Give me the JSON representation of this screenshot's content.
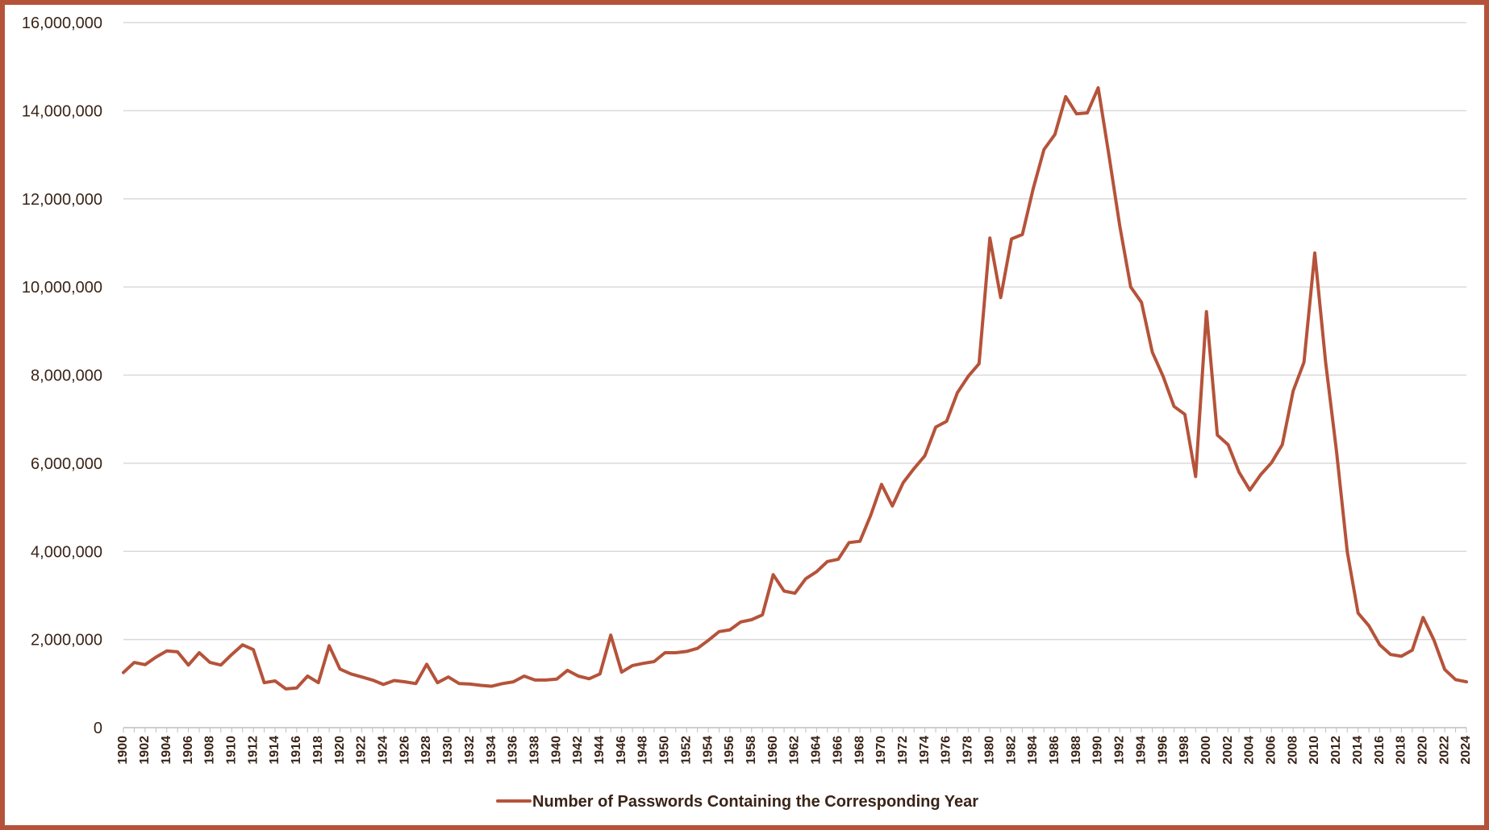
{
  "chart_data": {
    "type": "line",
    "title": "",
    "xlabel": "",
    "ylabel": "",
    "ylim": [
      0,
      16000000
    ],
    "yticks": [
      0,
      2000000,
      4000000,
      6000000,
      8000000,
      10000000,
      12000000,
      14000000,
      16000000
    ],
    "ytick_labels": [
      "0",
      "2,000,000",
      "4,000,000",
      "6,000,000",
      "8,000,000",
      "10,000,000",
      "12,000,000",
      "14,000,000",
      "16,000,000"
    ],
    "x_start": 1900,
    "x_end": 2024,
    "x_tick_step": 2,
    "grid": "horizontal",
    "legend_position": "bottom",
    "series": [
      {
        "name": "Number of Passwords Containing the Corresponding Year",
        "color": "#b5533a",
        "x": [
          1900,
          1901,
          1902,
          1903,
          1904,
          1905,
          1906,
          1907,
          1908,
          1909,
          1910,
          1911,
          1912,
          1913,
          1914,
          1915,
          1916,
          1917,
          1918,
          1919,
          1920,
          1921,
          1922,
          1923,
          1924,
          1925,
          1926,
          1927,
          1928,
          1929,
          1930,
          1931,
          1932,
          1933,
          1934,
          1935,
          1936,
          1937,
          1938,
          1939,
          1940,
          1941,
          1942,
          1943,
          1944,
          1945,
          1946,
          1947,
          1948,
          1949,
          1950,
          1951,
          1952,
          1953,
          1954,
          1955,
          1956,
          1957,
          1958,
          1959,
          1960,
          1961,
          1962,
          1963,
          1964,
          1965,
          1966,
          1967,
          1968,
          1969,
          1970,
          1971,
          1972,
          1973,
          1974,
          1975,
          1976,
          1977,
          1978,
          1979,
          1980,
          1981,
          1982,
          1983,
          1984,
          1985,
          1986,
          1987,
          1988,
          1989,
          1990,
          1991,
          1992,
          1993,
          1994,
          1995,
          1996,
          1997,
          1998,
          1999,
          2000,
          2001,
          2002,
          2003,
          2004,
          2005,
          2006,
          2007,
          2008,
          2009,
          2010,
          2011,
          2012,
          2013,
          2014,
          2015,
          2016,
          2017,
          2018,
          2019,
          2020,
          2021,
          2022,
          2023,
          2024
        ],
        "values": [
          1250000,
          1480000,
          1430000,
          1600000,
          1740000,
          1720000,
          1420000,
          1700000,
          1480000,
          1420000,
          1660000,
          1880000,
          1770000,
          1020000,
          1060000,
          880000,
          900000,
          1170000,
          1020000,
          1860000,
          1330000,
          1220000,
          1150000,
          1080000,
          980000,
          1070000,
          1040000,
          1000000,
          1440000,
          1020000,
          1150000,
          1000000,
          990000,
          960000,
          940000,
          1000000,
          1040000,
          1170000,
          1080000,
          1080000,
          1100000,
          1300000,
          1170000,
          1110000,
          1220000,
          2100000,
          1260000,
          1410000,
          1460000,
          1500000,
          1700000,
          1700000,
          1730000,
          1800000,
          1980000,
          2180000,
          2220000,
          2400000,
          2450000,
          2560000,
          3470000,
          3100000,
          3050000,
          3380000,
          3540000,
          3770000,
          3820000,
          4200000,
          4230000,
          4820000,
          5520000,
          5030000,
          5560000,
          5880000,
          6170000,
          6820000,
          6950000,
          7600000,
          7970000,
          8260000,
          11110000,
          9760000,
          11090000,
          11190000,
          12230000,
          13120000,
          13460000,
          14320000,
          13930000,
          13950000,
          14520000,
          12980000,
          11380000,
          10000000,
          9650000,
          8520000,
          7970000,
          7290000,
          7110000,
          5700000,
          9440000,
          6640000,
          6420000,
          5800000,
          5390000,
          5740000,
          6010000,
          6420000,
          7640000,
          8290000,
          10770000,
          8300000,
          6280000,
          3990000,
          2600000,
          2310000,
          1880000,
          1660000,
          1620000,
          1760000,
          2500000,
          1990000,
          1320000,
          1090000,
          1040000
        ]
      }
    ]
  },
  "legend": {
    "label": "Number of Passwords Containing the Corresponding Year"
  }
}
